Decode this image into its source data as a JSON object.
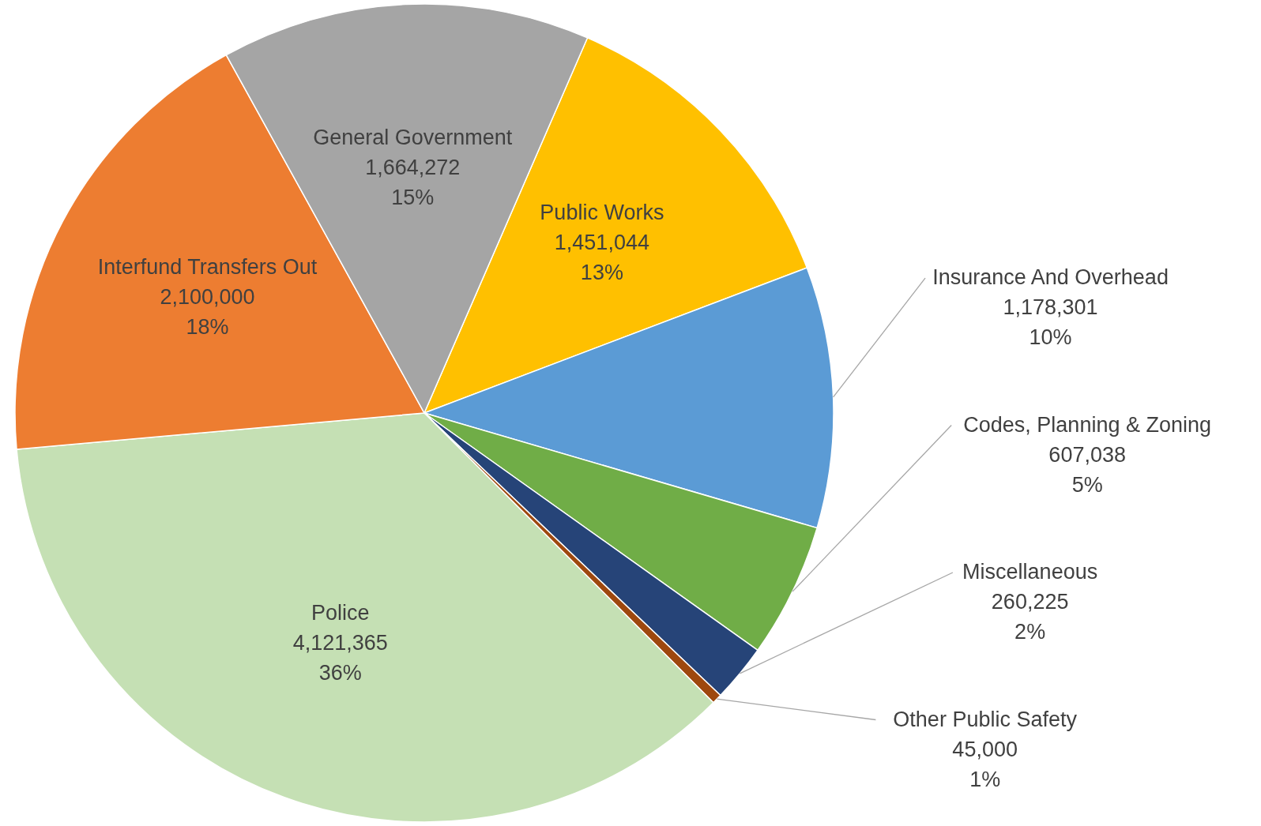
{
  "chart_data": {
    "type": "pie",
    "categories": [
      "Public Works",
      "Insurance And Overhead",
      "Codes, Planning & Zoning",
      "Miscellaneous",
      "Other Public Safety",
      "Police",
      "Interfund Transfers Out",
      "General Government"
    ],
    "values": [
      1451044,
      1178301,
      607038,
      260225,
      45000,
      4121365,
      2100000,
      1664272
    ],
    "colors": [
      "#ffc000",
      "#5b9bd5",
      "#70ad47",
      "#264478",
      "#9e480e",
      "#c5e0b4",
      "#ed7d31",
      "#a5a5a5"
    ],
    "value_labels": [
      "1,451,044\n13%",
      "1,178,301\n10%",
      "607,038\n5%",
      "260,225\n2%",
      "45,000\n1%",
      "4,121,365\n36%",
      "2,100,000\n18%",
      "1,664,272\n15%"
    ]
  }
}
